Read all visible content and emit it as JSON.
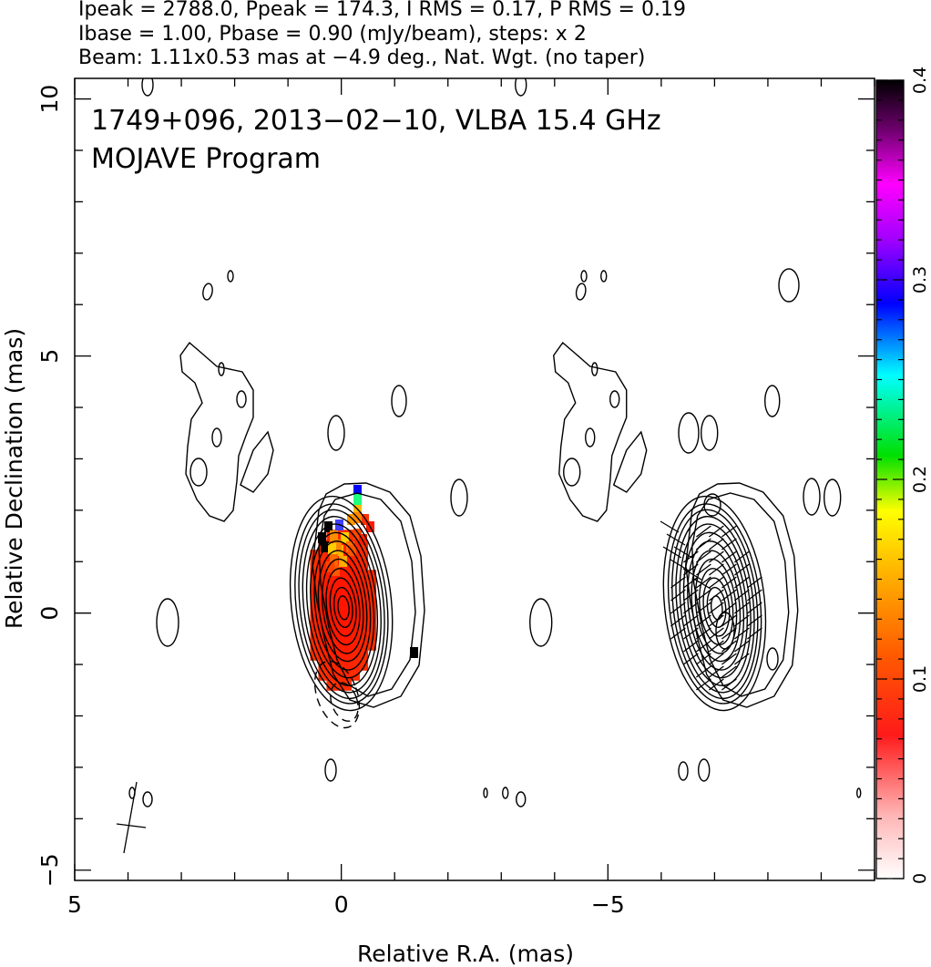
{
  "header": {
    "line1": "Ipeak = 2788.0, Ppeak = 174.3, I RMS = 0.17, P RMS = 0.19",
    "line2": "Ibase = 1.00, Pbase = 0.90 (mJy/beam), steps: x 2",
    "line3": "Beam: 1.11x0.53 mas at −4.9 deg., Nat. Wgt. (no taper)"
  },
  "chart_data": {
    "type": "heatmap",
    "title": "1749+096, 2013−02−10, VLBA 15.4 GHz",
    "subtitle": "MOJAVE Program",
    "xlabel": "Relative R.A. (mas)",
    "ylabel": "Relative Declination (mas)",
    "xlim": [
      5.0,
      -10.0
    ],
    "ylim": [
      -5.2,
      10.4
    ],
    "x_ticks": [
      5,
      0,
      -5
    ],
    "x_tick_labels": [
      "5",
      "0",
      "−5"
    ],
    "y_ticks": [
      -5,
      0,
      5,
      10
    ],
    "y_tick_labels": [
      "−5",
      "0",
      "5",
      "10"
    ],
    "colorbar": {
      "min": 0,
      "max": 0.4,
      "ticks": [
        0,
        0.1,
        0.2,
        0.3,
        0.4
      ],
      "tick_labels": [
        "0",
        "0.1",
        "0.2",
        "0.3",
        "0.4"
      ]
    },
    "panels": [
      {
        "name": "left",
        "center_ra": 0.0
      },
      {
        "name": "right",
        "center_ra": -7.0
      }
    ],
    "beam": {
      "major_mas": 1.11,
      "minor_mas": 0.53,
      "pa_deg": -4.9
    },
    "peak_intensity_mjy_per_beam": 2788.0,
    "peak_polarized_mjy_per_beam": 174.3
  },
  "colors": {
    "contour": "#000000",
    "fracpol_low": "#ff2a00",
    "fracpol_high": "#000000"
  }
}
